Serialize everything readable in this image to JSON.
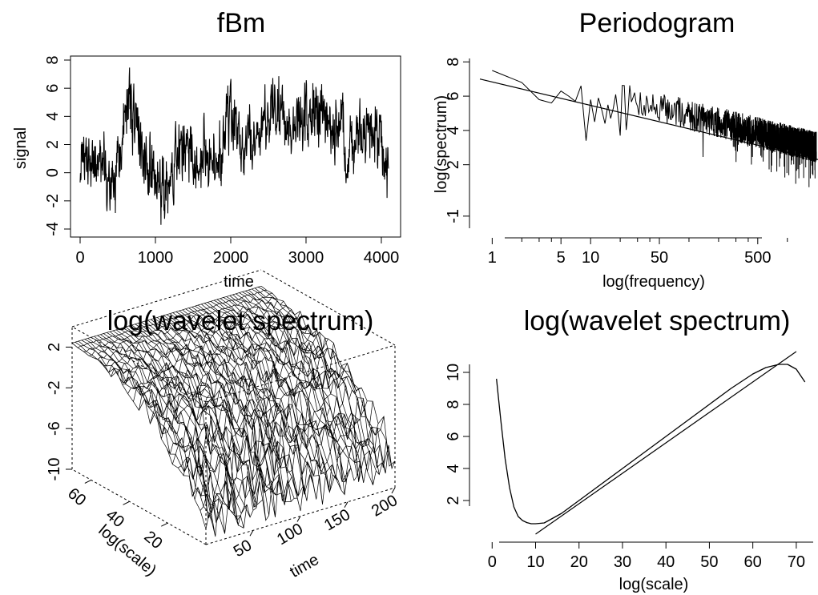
{
  "colors": {
    "ink": "#000000",
    "background": "#ffffff"
  },
  "chart_data": [
    {
      "id": "fbm",
      "type": "line",
      "title": "fBm",
      "xlabel": "time",
      "ylabel": "signal",
      "xlim": [
        0,
        4096
      ],
      "ylim": [
        -4,
        8
      ],
      "xticks": [
        0,
        1000,
        2000,
        3000,
        4000
      ],
      "xtick_labels": [
        "0",
        "1000",
        "2000",
        "3000",
        "4000"
      ],
      "yticks": [
        -4,
        -2,
        0,
        2,
        4,
        6,
        8
      ],
      "ytick_labels": [
        "-4",
        "-2",
        "0",
        "2",
        "4",
        "6",
        "8"
      ],
      "grid": false,
      "series": [
        {
          "envelope_x": [
            0,
            128,
            256,
            384,
            448,
            512,
            640,
            704,
            768,
            896,
            1024,
            1152,
            1280,
            1408,
            1536,
            1664,
            1792,
            1920,
            2000,
            2048,
            2176,
            2304,
            2432,
            2560,
            2688,
            2816,
            2944,
            3072,
            3200,
            3328,
            3456,
            3584,
            3712,
            3840,
            3968,
            4050,
            4096
          ],
          "envelope_mid": [
            0.5,
            1.0,
            0.5,
            -0.5,
            -1.5,
            0.5,
            5.0,
            5.0,
            2.5,
            0.5,
            -1.5,
            -1.5,
            1.0,
            1.5,
            1.0,
            1.5,
            0.5,
            2.5,
            4.5,
            3.5,
            1.5,
            2.5,
            3.5,
            4.0,
            4.0,
            2.5,
            3.5,
            5.0,
            3.5,
            2.5,
            3.5,
            1.5,
            2.5,
            3.0,
            2.5,
            0.5,
            -0.5
          ],
          "envelope_amp": [
            1.2,
            1.4,
            1.5,
            1.6,
            1.7,
            1.6,
            1.8,
            2.0,
            1.8,
            1.6,
            1.8,
            1.8,
            1.6,
            1.6,
            1.5,
            1.6,
            1.5,
            1.6,
            1.8,
            1.5,
            1.5,
            1.5,
            1.5,
            1.6,
            1.6,
            1.5,
            1.6,
            1.7,
            1.6,
            1.5,
            1.6,
            1.5,
            1.5,
            1.5,
            1.6,
            1.7,
            1.5
          ],
          "points": 1024
        }
      ]
    },
    {
      "id": "periodogram",
      "type": "line",
      "title": "Periodogram",
      "xlabel": "log(frequency)",
      "ylabel": "log(spectrum)",
      "xscale": "log",
      "xlim": [
        0.75,
        2048
      ],
      "ylim": [
        -1.8,
        8.2
      ],
      "xticks": [
        1,
        5,
        10,
        50,
        500
      ],
      "xtick_labels": [
        "1",
        "5",
        "10",
        "50",
        "500"
      ],
      "yticks": [
        -1,
        2,
        4,
        6,
        8
      ],
      "ytick_labels": [
        "-1",
        "2",
        "4",
        "6",
        "8"
      ],
      "grid": false,
      "series": [
        {
          "kind": "noisy-periodogram",
          "x": [
            1,
            2,
            3,
            4,
            5,
            6,
            7,
            8,
            9,
            10,
            11,
            12,
            13,
            14,
            15,
            16,
            17,
            18,
            19,
            20
          ],
          "y": [
            7.5,
            6.8,
            5.8,
            5.6,
            6.3,
            6.0,
            5.7,
            6.6,
            3.4,
            5.8,
            4.5,
            5.9,
            5.2,
            4.4,
            5.5,
            4.7,
            5.3,
            6.1,
            5.0,
            3.7
          ],
          "trend_slope": -0.63,
          "trend_intercept": 7.8,
          "noise_amp": 0.9,
          "points": 2048
        },
        {
          "kind": "fitted-line",
          "x": [
            0.75,
            2048
          ],
          "y": [
            7.0,
            2.3
          ]
        }
      ]
    },
    {
      "id": "wavelet-surface",
      "type": "surface",
      "title": "log(wavelet spectrum)",
      "xlabel": "time",
      "ylabel": "log(scale)",
      "xlim": [
        0,
        200
      ],
      "ylim": [
        0,
        70
      ],
      "zlim": [
        -10,
        4
      ],
      "xticks": [
        50,
        100,
        150,
        200
      ],
      "xtick_labels": [
        "50",
        "100",
        "150",
        "200"
      ],
      "yticks": [
        20,
        40,
        60
      ],
      "ytick_labels": [
        "20",
        "40",
        "60"
      ],
      "zticks": [
        -10,
        -6,
        -2,
        2
      ],
      "ztick_labels": [
        "-10",
        "-6",
        "-2",
        "2"
      ],
      "grid": false,
      "surface": {
        "scale_profile": [
          -7.5,
          -5.0,
          -3.0,
          -1.5,
          -0.3,
          0.7,
          1.4,
          1.9,
          2.2,
          2.4
        ],
        "time_noise": 2.2
      }
    },
    {
      "id": "wavelet-scale",
      "type": "line",
      "title": "log(wavelet spectrum)",
      "xlabel": "log(scale)",
      "ylabel": "",
      "xlim": [
        -3,
        75
      ],
      "ylim": [
        0,
        11
      ],
      "xticks": [
        0,
        10,
        20,
        30,
        40,
        50,
        60,
        70
      ],
      "xtick_labels": [
        "0",
        "10",
        "20",
        "30",
        "40",
        "50",
        "60",
        "70"
      ],
      "yticks": [
        2,
        4,
        6,
        8,
        10
      ],
      "ytick_labels": [
        "2",
        "4",
        "6",
        "8",
        "10"
      ],
      "grid": false,
      "series": [
        {
          "kind": "curve",
          "x": [
            1,
            2,
            3,
            4,
            5,
            6,
            7,
            8,
            9,
            10,
            12,
            14,
            16,
            20,
            25,
            30,
            35,
            40,
            45,
            50,
            55,
            60,
            63,
            66,
            68,
            70,
            72
          ],
          "y": [
            9.6,
            7.0,
            4.6,
            2.8,
            1.6,
            1.0,
            0.75,
            0.62,
            0.55,
            0.55,
            0.6,
            0.9,
            1.2,
            2.0,
            3.0,
            4.0,
            5.0,
            6.0,
            7.0,
            8.0,
            9.0,
            9.9,
            10.3,
            10.5,
            10.5,
            10.2,
            9.4
          ]
        },
        {
          "kind": "fitted-line",
          "x": [
            10,
            70
          ],
          "y": [
            -0.1,
            11.3
          ]
        }
      ]
    }
  ]
}
